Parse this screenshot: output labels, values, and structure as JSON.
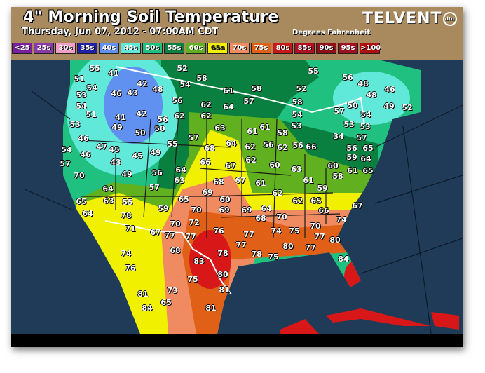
{
  "header": {
    "title": "4\" Morning Soil Temperature",
    "subtitle": "Thursday, Jun 07, 2012 - 07:00AM CDT",
    "units": "Degrees Fahrenheit",
    "logo": "TELVENT",
    "logo_badge": "dtn"
  },
  "legend": [
    {
      "label": "<25",
      "color": "#7a1fa0"
    },
    {
      "label": "25s",
      "color": "#8a3aa8"
    },
    {
      "label": "30s",
      "color": "#f3a0c8"
    },
    {
      "label": "35s",
      "color": "#2020a8"
    },
    {
      "label": "40s",
      "color": "#6090f0"
    },
    {
      "label": "45s",
      "color": "#60e8d8"
    },
    {
      "label": "50s",
      "color": "#20c080"
    },
    {
      "label": "55s",
      "color": "#0a8040"
    },
    {
      "label": "60s",
      "color": "#60b020"
    },
    {
      "label": "65s",
      "color": "#f0f000"
    },
    {
      "label": "70s",
      "color": "#f08a60"
    },
    {
      "label": "75s",
      "color": "#e06018"
    },
    {
      "label": "80s",
      "color": "#c81818"
    },
    {
      "label": "85s",
      "color": "#b01020"
    },
    {
      "label": "90s",
      "color": "#901018"
    },
    {
      "label": "95s",
      "color": "#a01020"
    },
    {
      "label": ">100",
      "color": "#b01010"
    }
  ],
  "station_values": [
    55,
    41,
    51,
    54,
    53,
    46,
    43,
    42,
    48,
    52,
    58,
    54,
    61,
    58,
    56,
    62,
    64,
    57,
    54,
    51,
    41,
    42,
    56,
    62,
    62,
    53,
    49,
    50,
    50,
    63,
    61,
    46,
    47,
    45,
    54,
    46,
    45,
    49,
    55,
    57,
    68,
    64,
    62,
    62,
    57,
    43,
    49,
    70,
    56,
    64,
    63,
    66,
    67,
    68,
    69,
    67,
    61,
    64,
    57,
    65,
    65,
    63,
    55,
    59,
    60,
    69,
    69,
    64,
    64,
    78,
    70,
    68,
    71,
    67,
    70,
    72,
    77,
    77,
    76,
    77,
    77,
    74,
    74,
    68,
    83,
    78,
    78,
    75,
    76,
    75,
    80,
    81,
    81,
    73,
    65,
    84,
    81,
    55,
    56,
    48,
    48,
    46,
    52,
    58,
    50,
    57,
    54,
    49,
    52,
    54,
    53,
    61,
    58,
    56,
    62,
    56,
    66,
    53,
    34,
    53,
    57,
    56,
    65,
    64,
    60,
    63,
    60,
    58,
    59,
    59,
    61,
    61,
    65,
    62,
    62,
    65,
    66,
    67,
    70,
    70,
    74,
    75,
    77,
    80,
    80,
    77,
    84
  ]
}
